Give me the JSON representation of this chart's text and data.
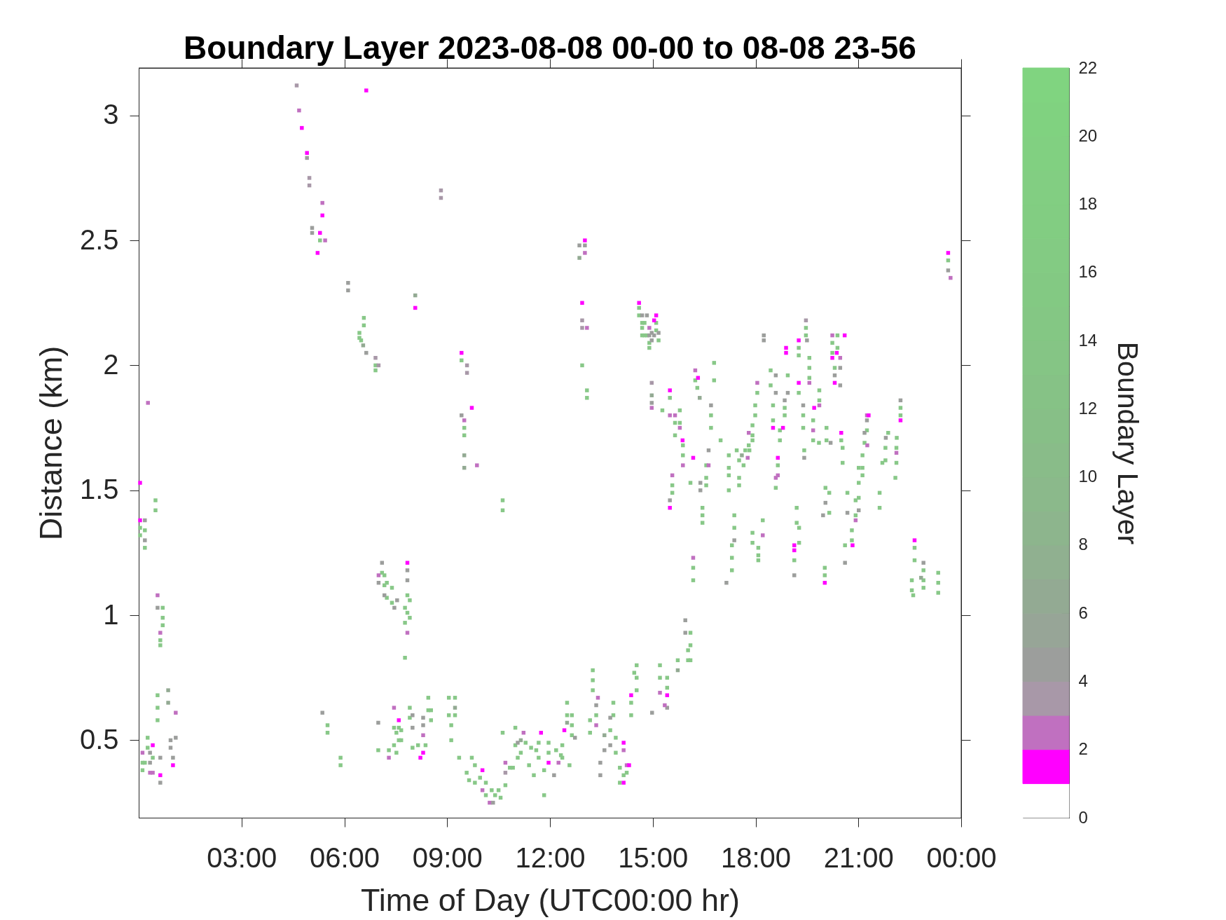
{
  "chart_data": {
    "type": "scatter",
    "title": "Boundary Layer 2023-08-08 00-00 to 08-08 23-56",
    "xlabel": "Time of Day (UTC00:00 hr)",
    "ylabel": "Distance (km)",
    "clabel": "Boundary Layer",
    "xlim": [
      0,
      24
    ],
    "ylim": [
      0.19,
      3.19
    ],
    "xticks": [
      {
        "value": 3,
        "label": "03:00"
      },
      {
        "value": 6,
        "label": "06:00"
      },
      {
        "value": 9,
        "label": "09:00"
      },
      {
        "value": 12,
        "label": "12:00"
      },
      {
        "value": 15,
        "label": "15:00"
      },
      {
        "value": 18,
        "label": "18:00"
      },
      {
        "value": 21,
        "label": "21:00"
      },
      {
        "value": 24,
        "label": "00:00"
      }
    ],
    "yticks": [
      0.5,
      1,
      1.5,
      2,
      2.5,
      3
    ],
    "clim": [
      0,
      22
    ],
    "cticks": [
      0,
      2,
      4,
      6,
      8,
      10,
      12,
      14,
      16,
      18,
      20,
      22
    ],
    "colors": [
      "#ffffff",
      "#ff00ff",
      "#c070c0",
      "#a898a8",
      "#9c9e9c",
      "#97a597",
      "#93aa93",
      "#90b090",
      "#8db58d",
      "#8bb98b",
      "#89bc89",
      "#87bf87",
      "#86c286",
      "#85c585",
      "#84c784",
      "#83c983",
      "#83cb83",
      "#82cd82",
      "#82ce82",
      "#81d081",
      "#80d280",
      "#80d480"
    ],
    "marker": "square",
    "series": [
      {
        "color": "#88c888",
        "x": [
          5.29,
          6.57,
          6.57,
          6.44,
          6.44,
          6.49,
          6.91,
          6.91,
          12.94,
          13.08,
          13.08,
          9.42,
          9.5,
          9.5,
          14.6,
          14.6,
          14.69,
          14.69,
          14.69,
          14.76,
          14.76,
          14.83,
          14.9,
          14.9,
          15.1,
          15.1,
          15.17,
          15.5,
          15.28,
          15.65,
          15.65,
          15.79,
          15.79,
          16.24,
          16.3,
          23.62,
          19.47,
          19.47,
          19.26,
          19.26,
          20.24,
          20.24,
          20.39,
          20.39,
          20.31,
          19.57,
          19.57,
          19.57,
          19.26,
          19.86,
          19.86,
          19.39,
          19.39,
          18.85,
          18.85,
          18.44,
          18.44,
          18.94,
          18.05,
          17.99,
          17.99,
          18.51,
          18.51,
          16.79,
          16.79,
          16.7,
          16.7,
          16.98,
          19.68,
          19.68,
          20.07,
          20.07,
          20.5,
          21.18,
          21.25,
          21.87,
          22.12,
          22.23,
          22.23,
          17.91,
          17.91,
          17.91,
          17.8,
          18.71,
          18.71,
          16.56,
          16.56,
          16.56,
          16.45,
          16.45,
          16.45,
          17.22,
          17.22,
          17.22,
          17.22,
          17.45,
          17.52,
          17.65,
          17.7,
          17.52,
          17.52,
          17.82,
          17.38,
          17.38,
          17.31,
          17.31,
          17.31,
          17.91,
          17.91,
          18.08,
          18.08,
          18.08,
          18.21,
          18.65,
          18.59,
          19.42,
          19.2,
          19.2,
          19.27,
          19.27,
          19.13,
          19.85,
          20.04,
          20.15,
          20.15,
          20.02,
          20.02,
          20.54,
          20.54,
          20.68,
          20.61,
          20.81,
          20.81,
          20.92,
          20.92,
          21.01,
          21.01,
          21.01,
          21.12,
          21.12,
          21.12,
          21.62,
          21.62,
          21.79,
          21.79,
          21.7,
          22.11,
          22.11,
          22.08,
          22.64,
          22.64,
          22.56,
          22.56,
          22.6,
          22.9,
          22.9,
          22.9,
          23.33,
          23.33,
          23.33,
          0.49,
          0.49,
          0.04,
          0.04,
          0.18,
          0.18,
          0.7,
          0.7,
          0.7,
          0.63,
          0.63,
          0.55,
          0.55,
          0.55,
          0.26,
          0.26,
          0.11,
          0.11,
          0.18,
          0.41,
          5.51,
          5.51,
          5.89,
          5.89,
          7.1,
          7.17,
          7.17,
          7.24,
          7.24,
          7.39,
          7.39,
          7.84,
          7.84,
          7.77,
          7.77,
          7.91,
          7.91,
          7.77,
          6.99,
          7.3,
          7.59,
          7.59,
          7.45,
          7.45,
          7.52,
          7.52,
          7.66,
          7.66,
          7.91,
          7.91,
          7.99,
          10.62,
          10.62,
          15.88,
          15.88,
          15.57,
          15.57,
          16.1,
          16.18,
          16.18,
          16.1,
          16.1,
          16.1,
          16.03,
          16.03,
          15.73,
          15.21,
          15.21,
          15.42,
          15.42,
          14.53,
          14.53,
          14.53,
          14.46,
          14.37,
          14.37,
          13.25,
          13.25,
          13.25,
          13.35,
          13.85,
          13.85,
          13.76,
          13.92,
          13.92,
          14.04,
          14.04,
          14.15,
          14.24,
          12.5,
          12.5,
          12.64,
          12.64,
          12.64,
          12.36,
          12.36,
          13.17,
          13.17,
          12.57,
          12.18,
          12.32,
          11.96,
          11.96,
          11.67,
          11.67,
          11.6,
          11.83,
          11.83,
          11.53,
          11.45,
          11.39,
          11.15,
          11.29,
          10.99,
          10.99,
          11.06,
          10.92,
          10.83,
          10.7,
          10.62,
          10.3,
          10.4,
          10.5,
          10.56,
          10.13,
          10.13,
          9.96,
          9.81,
          9.81,
          9.72,
          9.64,
          9.57,
          9.35,
          9.12,
          9.12,
          9.05,
          9.05,
          9.23,
          9.23,
          8.45,
          8.45,
          8.53,
          8.53,
          8.15,
          8.37
        ],
        "values": [
          2.5,
          2.19,
          2.16,
          2.13,
          2.11,
          2.1,
          2.0,
          1.98,
          2.0,
          1.9,
          1.87,
          2.02,
          1.75,
          1.72,
          2.23,
          2.2,
          2.17,
          2.15,
          2.12,
          2.17,
          2.12,
          2.12,
          2.09,
          2.07,
          2.17,
          2.14,
          2.1,
          1.87,
          1.82,
          1.77,
          1.72,
          1.82,
          1.77,
          1.94,
          1.91,
          2.42,
          2.15,
          2.12,
          2.07,
          2.04,
          2.09,
          2.05,
          2.12,
          2.07,
          1.99,
          2.03,
          1.99,
          1.95,
          1.89,
          1.9,
          1.86,
          1.8,
          1.75,
          1.83,
          1.8,
          1.98,
          1.92,
          1.96,
          1.89,
          1.84,
          1.8,
          1.84,
          1.78,
          2.01,
          1.94,
          1.8,
          1.75,
          1.7,
          1.78,
          1.7,
          1.75,
          1.7,
          1.7,
          1.69,
          1.74,
          1.73,
          1.71,
          1.83,
          1.8,
          1.76,
          1.72,
          1.7,
          1.68,
          1.74,
          1.7,
          1.6,
          1.55,
          1.52,
          1.43,
          1.4,
          1.37,
          1.64,
          1.59,
          1.56,
          1.5,
          1.66,
          1.62,
          1.6,
          1.66,
          1.55,
          1.52,
          1.66,
          1.4,
          1.35,
          1.28,
          1.23,
          1.18,
          1.33,
          1.29,
          1.27,
          1.24,
          1.22,
          1.38,
          1.6,
          1.51,
          1.66,
          1.43,
          1.37,
          1.35,
          1.29,
          1.22,
          1.69,
          1.51,
          1.49,
          1.41,
          1.19,
          1.16,
          1.67,
          1.61,
          1.49,
          1.28,
          1.34,
          1.3,
          1.46,
          1.4,
          1.59,
          1.53,
          1.47,
          1.64,
          1.59,
          1.56,
          1.49,
          1.43,
          1.67,
          1.62,
          1.61,
          1.67,
          1.61,
          1.55,
          1.27,
          1.22,
          1.14,
          1.1,
          1.08,
          1.18,
          1.14,
          1.11,
          1.17,
          1.13,
          1.09,
          1.46,
          1.42,
          1.35,
          1.32,
          1.34,
          1.27,
          1.03,
          0.99,
          0.96,
          0.9,
          0.88,
          0.68,
          0.63,
          0.58,
          0.51,
          0.47,
          0.41,
          0.38,
          0.41,
          0.43,
          0.56,
          0.53,
          0.43,
          0.4,
          1.17,
          1.16,
          1.12,
          1.13,
          1.07,
          1.11,
          1.05,
          1.08,
          1.01,
          1.03,
          0.97,
          1.06,
          0.99,
          0.83,
          0.46,
          0.46,
          0.55,
          0.5,
          0.55,
          0.48,
          0.53,
          0.45,
          0.54,
          0.5,
          0.63,
          0.59,
          0.47,
          1.46,
          1.42,
          1.68,
          1.64,
          1.52,
          1.49,
          1.53,
          1.19,
          1.14,
          0.93,
          0.88,
          0.82,
          0.86,
          0.82,
          0.82,
          0.8,
          0.75,
          0.75,
          0.71,
          0.8,
          0.75,
          0.7,
          0.77,
          0.65,
          0.6,
          0.78,
          0.74,
          0.7,
          0.6,
          0.65,
          0.6,
          0.54,
          0.51,
          0.45,
          0.39,
          0.33,
          0.36,
          0.37,
          0.65,
          0.6,
          0.6,
          0.56,
          0.52,
          0.48,
          0.43,
          0.58,
          0.53,
          0.4,
          0.46,
          0.44,
          0.49,
          0.45,
          0.49,
          0.43,
          0.46,
          0.38,
          0.28,
          0.36,
          0.47,
          0.4,
          0.45,
          0.49,
          0.55,
          0.48,
          0.43,
          0.39,
          0.39,
          0.32,
          0.53,
          0.3,
          0.28,
          0.3,
          0.27,
          0.33,
          0.28,
          0.35,
          0.4,
          0.33,
          0.43,
          0.34,
          0.37,
          0.43,
          0.56,
          0.5,
          0.67,
          0.6,
          0.67,
          0.6,
          0.67,
          0.62,
          0.62,
          0.58,
          0.48,
          0.48
        ]
      },
      {
        "x": [
          4.61,
          6.64,
          4.68,
          4.76,
          4.91,
          4.91,
          4.98,
          4.98,
          5.36,
          5.36,
          5.06,
          5.06,
          5.29,
          5.44,
          5.22,
          6.11,
          6.11,
          8.07,
          8.07,
          6.55,
          6.64,
          6.91,
          7.0,
          0.27,
          8.82,
          8.82,
          12.86,
          12.86,
          13.02,
          13.02,
          13.02,
          12.94,
          12.94,
          12.94,
          13.08,
          9.42,
          9.58,
          9.58,
          9.72,
          9.42,
          9.5,
          14.6,
          14.69,
          14.83,
          14.9,
          14.9,
          14.97,
          14.97,
          15.04,
          15.04,
          15.1,
          15.17,
          14.97,
          14.97,
          14.97,
          14.97,
          15.5,
          15.5,
          15.65,
          15.79,
          15.87,
          16.24,
          16.32,
          16.37,
          23.62,
          23.62,
          23.69,
          19.47,
          19.5,
          18.24,
          18.24,
          18.89,
          18.89,
          19.26,
          20.24,
          20.24,
          20.37,
          20.6,
          20.47,
          20.47,
          20.47,
          20.31,
          20.31,
          19.57,
          19.26,
          19.86,
          19.71,
          19.39,
          18.85,
          18.8,
          18.59,
          18.59,
          18.94,
          18.05,
          18.51,
          16.7,
          19.68,
          20.5,
          21.18,
          21.25,
          21.3,
          21.25,
          21.8,
          22.23,
          22.23,
          17.8,
          16.63,
          16.63,
          16.39,
          16.39,
          17.6,
          17.77,
          17.38,
          17.15,
          18.21,
          18.65,
          18.65,
          18.59,
          19.42,
          19.13,
          19.13,
          19.13,
          20.19,
          20.04,
          19.97,
          20.02,
          20.68,
          20.61,
          20.83,
          20.92,
          21.01,
          21.26,
          22.11,
          22.64,
          22.9,
          22.83,
          0.04,
          0.04,
          0.18,
          0.18,
          0.55,
          0.55,
          0.63,
          0.86,
          0.86,
          1.08,
          1.08,
          0.93,
          0.93,
          0.11,
          0.33,
          0.33,
          0.33,
          0.41,
          0.41,
          0.63,
          0.63,
          0.63,
          1.0,
          1.0,
          5.36,
          7.1,
          7.0,
          7.0,
          7.17,
          7.46,
          7.54,
          7.84,
          7.84,
          7.84,
          7.84,
          6.99,
          7.3,
          7.45,
          7.59,
          7.99,
          7.99,
          9.5,
          9.5,
          9.87,
          15.88,
          16.18,
          15.57,
          15.5,
          15.5,
          16.18,
          15.95,
          15.95,
          15.73,
          15.21,
          15.42,
          15.42,
          15.35,
          14.98,
          14.37,
          13.4,
          13.35,
          13.35,
          13.76,
          13.76,
          13.59,
          13.59,
          14.15,
          14.15,
          13.47,
          13.47,
          14.15,
          14.24,
          14.31,
          12.5,
          12.73,
          12.42,
          12.25,
          12.12,
          11.96,
          11.74,
          11.23,
          11.15,
          11.06,
          10.7,
          10.7,
          10.24,
          10.34,
          10.03,
          10.03,
          9.23,
          8.3,
          8.3,
          8.3,
          8.3,
          8.22
        ],
        "values": [
          3.12,
          3.1,
          3.02,
          2.95,
          2.85,
          2.83,
          2.75,
          2.72,
          2.65,
          2.6,
          2.55,
          2.53,
          2.53,
          2.5,
          2.45,
          2.33,
          2.3,
          2.28,
          2.23,
          2.08,
          2.05,
          2.03,
          2.0,
          1.85,
          2.7,
          2.67,
          2.48,
          2.43,
          2.5,
          2.48,
          2.45,
          2.25,
          2.18,
          2.15,
          2.15,
          2.05,
          2.0,
          1.97,
          1.83,
          1.8,
          1.78,
          2.25,
          2.2,
          2.2,
          2.15,
          2.12,
          2.13,
          2.1,
          2.18,
          2.12,
          2.2,
          2.13,
          1.93,
          1.88,
          1.85,
          1.83,
          1.9,
          1.8,
          1.8,
          1.75,
          1.7,
          1.98,
          1.95,
          1.87,
          2.45,
          2.38,
          2.35,
          2.18,
          2.1,
          2.12,
          2.1,
          2.07,
          2.05,
          2.1,
          2.12,
          2.03,
          2.05,
          2.12,
          2.03,
          1.99,
          1.92,
          1.96,
          1.93,
          1.93,
          1.93,
          1.84,
          1.83,
          1.84,
          1.86,
          1.75,
          1.96,
          1.89,
          1.89,
          1.93,
          1.75,
          1.84,
          1.74,
          1.73,
          1.73,
          1.8,
          1.8,
          1.78,
          1.71,
          1.86,
          1.78,
          1.73,
          1.66,
          1.6,
          1.53,
          1.5,
          1.64,
          1.63,
          1.3,
          1.13,
          1.32,
          1.63,
          1.56,
          1.55,
          1.63,
          1.28,
          1.26,
          1.16,
          1.69,
          1.45,
          1.4,
          1.13,
          1.41,
          1.21,
          1.28,
          1.38,
          1.42,
          1.68,
          1.65,
          1.3,
          1.21,
          1.15,
          1.53,
          1.38,
          1.38,
          1.3,
          1.08,
          1.03,
          0.93,
          0.7,
          0.65,
          0.61,
          0.51,
          0.5,
          0.47,
          0.45,
          0.45,
          0.41,
          0.37,
          0.48,
          0.37,
          0.43,
          0.36,
          0.33,
          0.43,
          0.4,
          0.61,
          1.21,
          1.16,
          1.13,
          1.08,
          1.03,
          1.06,
          1.21,
          1.18,
          1.14,
          0.93,
          0.57,
          0.43,
          0.63,
          0.58,
          0.6,
          0.55,
          1.64,
          1.59,
          1.6,
          1.6,
          1.63,
          1.56,
          1.46,
          1.43,
          1.23,
          0.98,
          0.93,
          0.78,
          0.69,
          0.68,
          0.63,
          0.64,
          0.61,
          0.68,
          0.67,
          0.64,
          0.56,
          0.59,
          0.48,
          0.52,
          0.46,
          0.49,
          0.46,
          0.41,
          0.36,
          0.33,
          0.4,
          0.4,
          0.57,
          0.51,
          0.54,
          0.41,
          0.36,
          0.41,
          0.53,
          0.53,
          0.5,
          0.49,
          0.41,
          0.37,
          0.25,
          0.25,
          0.38,
          0.3,
          0.63,
          0.59,
          0.56,
          0.52,
          0.45,
          0.43
        ],
        "colors": [
          "#a898a8",
          "#ff00ff",
          "#c070c0",
          "#ff00ff",
          "#ff00ff",
          "#9c9e9c",
          "#a898a8",
          "#a898a8",
          "#c070c0",
          "#ff00ff",
          "#9c9e9c",
          "#9c9e9c",
          "#ff00ff",
          "#c070c0",
          "#ff00ff",
          "#9c9e9c",
          "#9c9e9c",
          "#93aa93",
          "#ff00ff",
          "#93aa93",
          "#9c9e9c",
          "#a898a8",
          "#a898a8",
          "#c070c0",
          "#a898a8",
          "#a898a8",
          "#9c9e9c",
          "#93aa93",
          "#ff00ff",
          "#9c9e9c",
          "#c070c0",
          "#ff00ff",
          "#a898a8",
          "#a898a8",
          "#c070c0",
          "#ff00ff",
          "#a898a8",
          "#a898a8",
          "#ff00ff",
          "#9c9e9c",
          "#c070c0",
          "#ff00ff",
          "#9c9e9c",
          "#9c9e9c",
          "#c070c0",
          "#9c9e9c",
          "#9c9e9c",
          "#9c9e9c",
          "#ff00ff",
          "#9c9e9c",
          "#ff00ff",
          "#9c9e9c",
          "#a898a8",
          "#93aa93",
          "#9c9e9c",
          "#c070c0",
          "#ff00ff",
          "#c070c0",
          "#c070c0",
          "#c070c0",
          "#ff00ff",
          "#c070c0",
          "#ff00ff",
          "#93aa93",
          "#ff00ff",
          "#9c9e9c",
          "#c070c0",
          "#a898a8",
          "#9c9e9c",
          "#9c9e9c",
          "#9c9e9c",
          "#ff00ff",
          "#ff00ff",
          "#ff00ff",
          "#c070c0",
          "#ff00ff",
          "#ff00ff",
          "#ff00ff",
          "#c070c0",
          "#9c9e9c",
          "#9c9e9c",
          "#9c9e9c",
          "#ff00ff",
          "#c070c0",
          "#ff00ff",
          "#c070c0",
          "#ff00ff",
          "#9c9e9c",
          "#9c9e9c",
          "#ff00ff",
          "#9c9e9c",
          "#9c9e9c",
          "#9c9e9c",
          "#c070c0",
          "#ff00ff",
          "#9c9e9c",
          "#c070c0",
          "#ff00ff",
          "#9c9e9c",
          "#c070c0",
          "#ff00ff",
          "#9c9e9c",
          "#9c9e9c",
          "#9c9e9c",
          "#ff00ff",
          "#c070c0",
          "#9c9e9c",
          "#c070c0",
          "#9c9e9c",
          "#9c9e9c",
          "#93aa93",
          "#c070c0",
          "#9c9e9c",
          "#9c9e9c",
          "#c070c0",
          "#ff00ff",
          "#c070c0",
          "#c070c0",
          "#9c9e9c",
          "#ff00ff",
          "#ff00ff",
          "#9c9e9c",
          "#9c9e9c",
          "#9c9e9c",
          "#9c9e9c",
          "#ff00ff",
          "#9c9e9c",
          "#9c9e9c",
          "#ff00ff",
          "#c070c0",
          "#9c9e9c",
          "#c070c0",
          "#c070c0",
          "#ff00ff",
          "#9c9e9c",
          "#93aa93",
          "#ff00ff",
          "#ff00ff",
          "#9c9e9c",
          "#9c9e9c",
          "#c070c0",
          "#9c9e9c",
          "#c070c0",
          "#93aa93",
          "#93aa93",
          "#c070c0",
          "#9c9e9c",
          "#9c9e9c",
          "#9c9e9c",
          "#c070c0",
          "#9c9e9c",
          "#9c9e9c",
          "#c070c0",
          "#ff00ff",
          "#c070c0",
          "#9c9e9c",
          "#ff00ff",
          "#9c9e9c",
          "#9c9e9c",
          "#ff00ff",
          "#9c9e9c",
          "#9c9e9c",
          "#c070c0",
          "#9c9e9c",
          "#9c9e9c",
          "#9c9e9c",
          "#9c9e9c",
          "#ff00ff",
          "#9c9e9c",
          "#9c9e9c",
          "#c070c0",
          "#9c9e9c",
          "#c070c0",
          "#c070c0",
          "#ff00ff",
          "#9c9e9c",
          "#9c9e9c",
          "#93aa93",
          "#93aa93",
          "#c070c0",
          "#c070c0",
          "#ff00ff",
          "#c070c0",
          "#9c9e9c",
          "#ff00ff",
          "#c070c0",
          "#9c9e9c",
          "#9c9e9c",
          "#93aa93",
          "#c070c0",
          "#ff00ff",
          "#9c9e9c",
          "#c070c0",
          "#9c9e9c",
          "#ff00ff",
          "#c070c0",
          "#9c9e9c",
          "#c070c0",
          "#9c9e9c",
          "#9c9e9c",
          "#93aa93",
          "#9c9e9c",
          "#ff00ff",
          "#c070c0",
          "#9c9e9c",
          "#9c9e9c",
          "#ff00ff",
          "#c070c0",
          "#ff00ff",
          "#93aa93",
          "#9c9e9c",
          "#ff00ff",
          "#c070c0",
          "#9c9e9c",
          "#ff00ff",
          "#ff00ff",
          "#c070c0",
          "#93aa93",
          "#9c9e9c",
          "#c070c0",
          "#a898a8",
          "#c070c0",
          "#9c9e9c",
          "#ff00ff",
          "#c070c0",
          "#93aa93",
          "#9c9e9c",
          "#9c9e9c",
          "#c070c0",
          "#ff00ff",
          "#ff00ff"
        ]
      }
    ]
  }
}
